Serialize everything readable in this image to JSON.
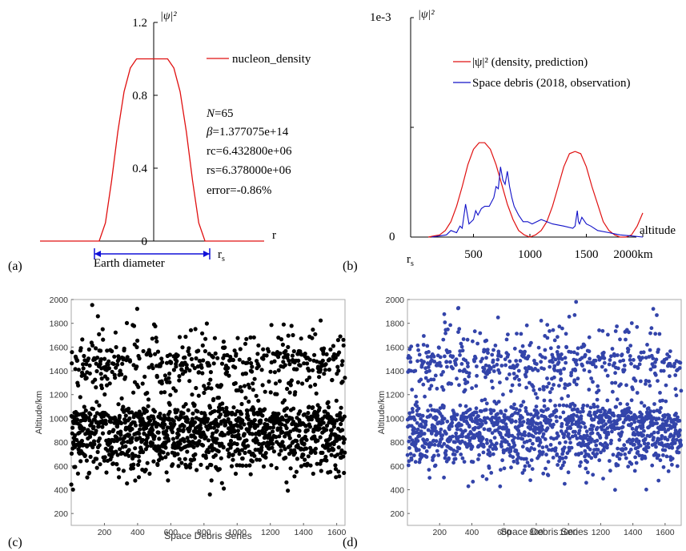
{
  "chart_data": [
    {
      "id": "a",
      "type": "line",
      "panel_label": "(a)",
      "ylabel": "|ψ|²",
      "xlabel": "r",
      "yticks": [
        0,
        0.4,
        0.8,
        1.2
      ],
      "ytick_labels": [
        "0",
        "0.4",
        "0.8",
        "1.2"
      ],
      "ylim": [
        0,
        1.2
      ],
      "xlim": [
        -1.8,
        1.8
      ],
      "legend": "nucleon_density",
      "legend_position": "top-right",
      "series_color": "#e01010",
      "x": [
        -1.8,
        -0.85,
        -0.75,
        -0.65,
        -0.55,
        -0.45,
        -0.35,
        -0.25,
        -0.15,
        0,
        0.15,
        0.25,
        0.35,
        0.45,
        0.55,
        0.65,
        0.75,
        0.85,
        1.8
      ],
      "y": [
        0,
        0,
        0.1,
        0.33,
        0.6,
        0.82,
        0.95,
        1.0,
        1.0,
        1.0,
        1.0,
        1.0,
        0.95,
        0.82,
        0.6,
        0.33,
        0.1,
        0,
        0
      ],
      "annotations": {
        "N": "N",
        "N_value": "=65",
        "beta": "β",
        "beta_value": "=1.377075e+14",
        "rc": "rc=6.432800e+06",
        "rs": "rs=6.378000e+06",
        "error": "error=-0.86%"
      },
      "diameter_label": "Earth diameter",
      "rs_tick": "r",
      "rs_sub": "s"
    },
    {
      "id": "b",
      "type": "line",
      "panel_label": "(b)",
      "ylabel": "|ψ|²",
      "ytop_label": "1e-3",
      "y_zero_label": "0",
      "xlabel": "altitude",
      "x_origin_label": "r",
      "x_origin_sub": "s",
      "xticks": [
        500,
        1000,
        1500,
        2000
      ],
      "xtick_labels": [
        "500",
        "1000",
        "1500",
        "2000km"
      ],
      "xlim": [
        0,
        2000
      ],
      "ylim": [
        0,
        1
      ],
      "legend_position": "top-right",
      "series": [
        {
          "name": "|ψ|² (density, prediction)",
          "color": "#e01010",
          "x": [
            100,
            150,
            200,
            250,
            300,
            350,
            400,
            450,
            500,
            550,
            600,
            650,
            700,
            750,
            800,
            850,
            900,
            950,
            1000,
            1050,
            1100,
            1150,
            1200,
            1250,
            1300,
            1350,
            1400,
            1450,
            1500,
            1550,
            1600,
            1650,
            1700,
            1750,
            1800,
            1850,
            1900,
            1950,
            2000
          ],
          "y": [
            0.0,
            0.005,
            0.01,
            0.03,
            0.07,
            0.14,
            0.23,
            0.33,
            0.4,
            0.43,
            0.43,
            0.4,
            0.33,
            0.24,
            0.15,
            0.08,
            0.03,
            0.01,
            0.0,
            0.01,
            0.03,
            0.07,
            0.14,
            0.23,
            0.32,
            0.38,
            0.39,
            0.38,
            0.32,
            0.23,
            0.15,
            0.07,
            0.03,
            0.01,
            0.0,
            0.0,
            0.01,
            0.05,
            0.11
          ]
        },
        {
          "name": "Space debris (2018, observation)",
          "color": "#1010c8",
          "x": [
            130,
            200,
            260,
            300,
            350,
            380,
            400,
            430,
            460,
            500,
            520,
            540,
            570,
            600,
            640,
            680,
            700,
            720,
            740,
            760,
            780,
            800,
            820,
            840,
            860,
            880,
            900,
            940,
            980,
            1020,
            1100,
            1200,
            1300,
            1380,
            1400,
            1420,
            1430,
            1440,
            1460,
            1500,
            1540,
            1600,
            1700,
            1800,
            1900,
            2000
          ],
          "y": [
            0.0,
            0.005,
            0.01,
            0.03,
            0.02,
            0.05,
            0.04,
            0.15,
            0.06,
            0.08,
            0.12,
            0.1,
            0.13,
            0.14,
            0.14,
            0.18,
            0.23,
            0.22,
            0.32,
            0.26,
            0.24,
            0.3,
            0.23,
            0.18,
            0.14,
            0.12,
            0.1,
            0.07,
            0.07,
            0.06,
            0.08,
            0.06,
            0.05,
            0.04,
            0.05,
            0.12,
            0.07,
            0.06,
            0.09,
            0.06,
            0.05,
            0.03,
            0.02,
            0.01,
            0.005,
            0.0
          ]
        }
      ]
    },
    {
      "id": "c",
      "type": "scatter",
      "panel_label": "(c)",
      "xlabel": "Space Debris Series",
      "ylabel": "Altitude/km",
      "xlim": [
        0,
        1650
      ],
      "ylim": [
        100,
        2000
      ],
      "xticks": [
        200,
        400,
        600,
        800,
        1000,
        1200,
        1400,
        1600
      ],
      "yticks": [
        200,
        400,
        600,
        800,
        1000,
        1200,
        1400,
        1600,
        1800,
        2000
      ],
      "point_color": "#000000",
      "n_points": 1650
    },
    {
      "id": "d",
      "type": "scatter",
      "panel_label": "(d)",
      "xlabel": "Space Debris Series",
      "ylabel": "Altitude/km",
      "xlim": [
        0,
        1700
      ],
      "ylim": [
        100,
        2000
      ],
      "xticks": [
        200,
        400,
        600,
        800,
        1000,
        1200,
        1400,
        1600
      ],
      "yticks": [
        200,
        400,
        600,
        800,
        1000,
        1200,
        1400,
        1600,
        1800,
        2000
      ],
      "point_color": "#3344aa",
      "n_points": 1700
    }
  ]
}
